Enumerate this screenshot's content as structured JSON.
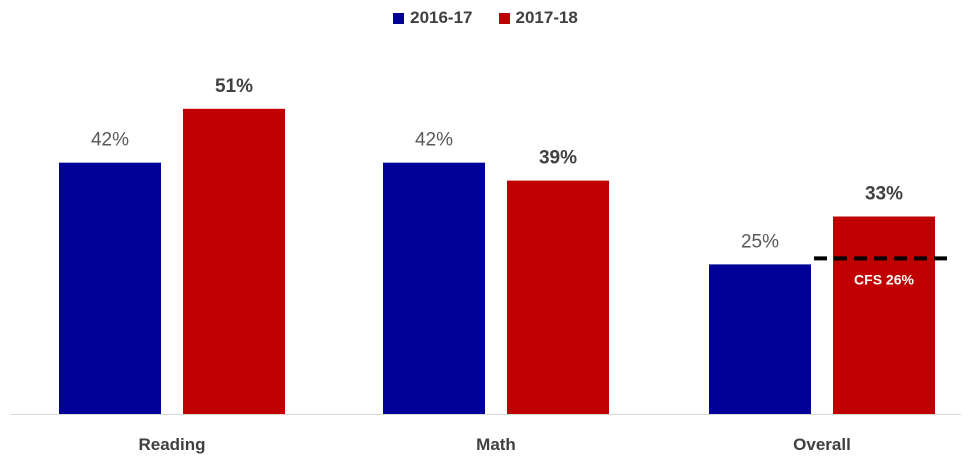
{
  "chart_data": {
    "type": "bar",
    "categories": [
      "Reading",
      "Math",
      "Overall"
    ],
    "series": [
      {
        "name": "2016-17",
        "color": "#000099",
        "values": [
          42,
          42,
          25
        ],
        "labels": [
          "42%",
          "42%",
          "25%"
        ]
      },
      {
        "name": "2017-18",
        "color": "#C00000",
        "values": [
          51,
          39,
          33
        ],
        "labels": [
          "51%",
          "39%",
          "33%"
        ]
      }
    ],
    "ylim": [
      0,
      63
    ],
    "grid": false,
    "legend_position": "top",
    "reference_line": {
      "category": "Overall",
      "value": 26,
      "label": "CFS 26%",
      "style": "dashed",
      "color": "#000000"
    }
  }
}
